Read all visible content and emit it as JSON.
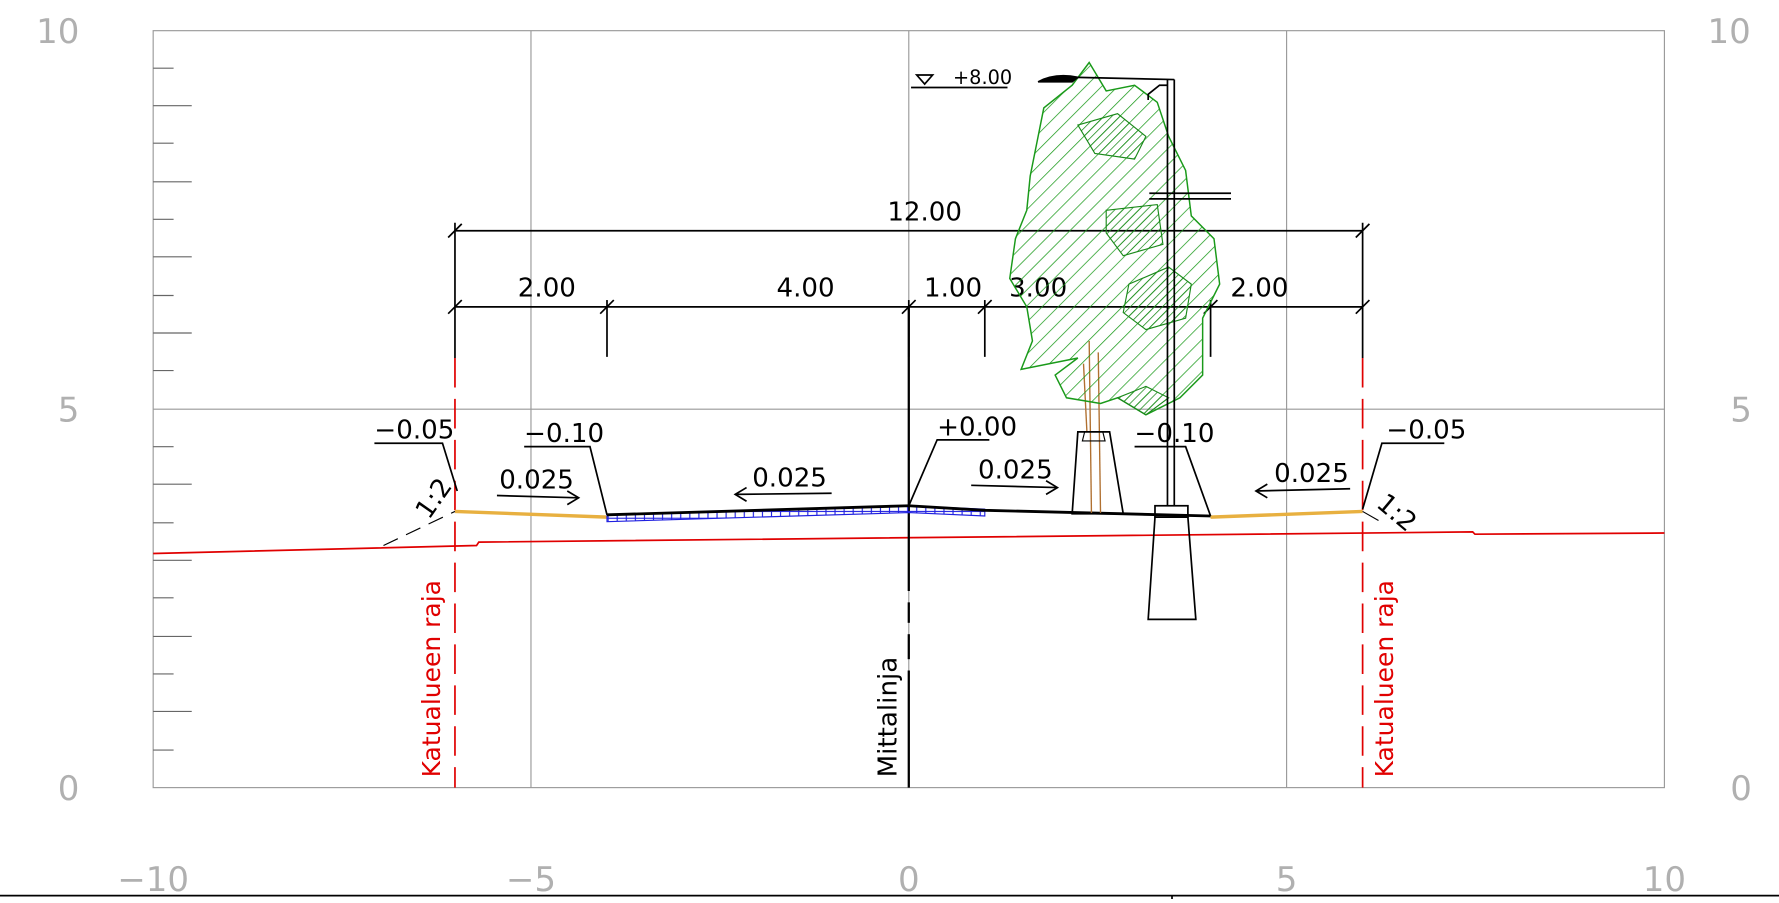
{
  "axes": {
    "left": [
      "10",
      "5",
      "0"
    ],
    "right": [
      "10",
      "5",
      "0"
    ],
    "bottom": [
      "−10",
      "−5",
      "0",
      "5",
      "10"
    ]
  },
  "dimensions": {
    "total": "12.00",
    "parts": [
      "2.00",
      "4.00",
      "1.00",
      "3.00",
      "2.00"
    ]
  },
  "elevations": [
    "−0.05",
    "−0.10",
    "+0.00",
    "−0.10",
    "−0.05"
  ],
  "top_level": "+8.00",
  "slopes": [
    "0.025",
    "0.025",
    "0.025",
    "0.025"
  ],
  "ratios": [
    "1:2",
    "1:2"
  ],
  "boundary_labels": [
    "Katualueen raja",
    "Katualueen raja"
  ],
  "centerline_label": "Mittalinja"
}
